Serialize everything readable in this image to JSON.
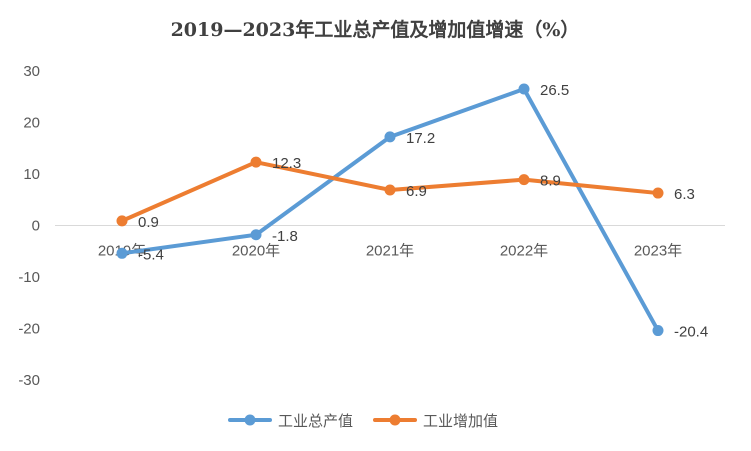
{
  "chart_data": {
    "type": "line",
    "title": "2019—2023年工业总产值及增加值增速（%）",
    "categories": [
      "2019年",
      "2020年",
      "2021年",
      "2022年",
      "2023年"
    ],
    "ylim": [
      -30,
      30
    ],
    "yticks": [
      "30",
      "20",
      "10",
      "0",
      "-10",
      "-20",
      "-30"
    ],
    "ytick_values": [
      30,
      20,
      10,
      0,
      -10,
      -20,
      -30
    ],
    "grid": false,
    "legend_position": "bottom",
    "series": [
      {
        "name": "工业总产值",
        "color": "#5B9BD5",
        "values": [
          -5.4,
          -1.8,
          17.2,
          26.5,
          -20.4
        ],
        "labels": [
          "-5.4",
          "-1.8",
          "17.2",
          "26.5",
          "-20.4"
        ]
      },
      {
        "name": "工业增加值",
        "color": "#ED7D31",
        "values": [
          0.9,
          12.3,
          6.9,
          8.9,
          6.3
        ],
        "labels": [
          "0.9",
          "12.3",
          "6.9",
          "8.9",
          "6.3"
        ]
      }
    ]
  }
}
